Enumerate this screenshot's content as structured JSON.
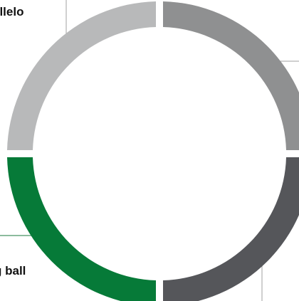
{
  "segments": [
    {
      "id": "top-left",
      "color": "#b8b9ba",
      "label": "allelo"
    },
    {
      "id": "top-right",
      "color": "#8f9091",
      "label": ""
    },
    {
      "id": "bottom-right",
      "color": "#55565a",
      "label": ""
    },
    {
      "id": "bottom-left",
      "color": "#067a38",
      "label": "g ball"
    }
  ],
  "connector_color": "#a0a0a0"
}
